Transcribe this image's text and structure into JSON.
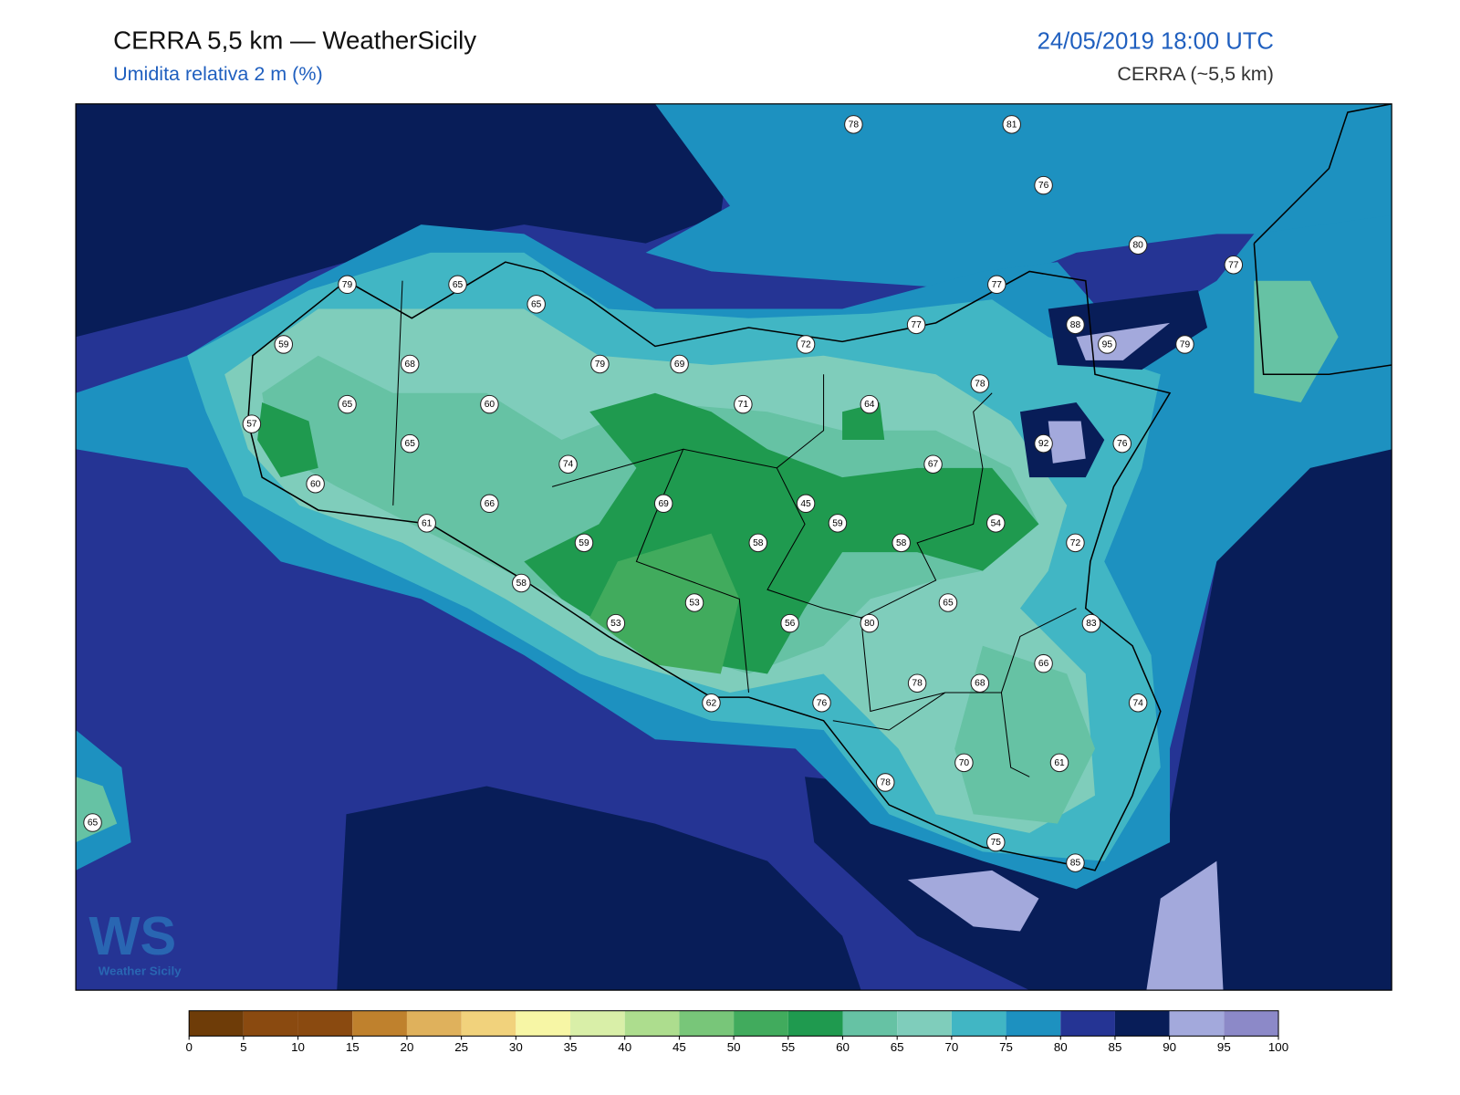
{
  "header": {
    "title": "CERRA 5,5 km — WeatherSicily",
    "subtitle": "Umidita relativa 2 m (%)",
    "datetime": "24/05/2019 18:00 UTC",
    "model": "CERRA (~5,5 km)"
  },
  "logo": {
    "mark": "WS",
    "name": "Weather Sicily"
  },
  "stations": [
    78,
    81,
    76,
    80,
    77,
    65,
    79,
    65,
    77,
    88,
    95,
    77,
    72,
    79,
    59,
    68,
    79,
    69,
    78,
    64,
    71,
    65,
    60,
    57,
    92,
    76,
    65,
    74,
    67,
    60,
    66,
    69,
    45,
    59,
    54,
    61,
    59,
    58,
    58,
    72,
    58,
    65,
    53,
    53,
    56,
    80,
    83,
    66,
    78,
    68,
    62,
    76,
    74,
    70,
    61,
    78,
    65,
    75,
    85
  ],
  "colorbar": {
    "ticks": [
      0,
      5,
      10,
      15,
      20,
      25,
      30,
      35,
      40,
      45,
      50,
      55,
      60,
      65,
      70,
      75,
      80,
      85,
      90,
      95,
      100
    ],
    "colors": [
      "#6e3c08",
      "#8a4a10",
      "#8a4a10",
      "#bf812d",
      "#dfb15c",
      "#f1d27c",
      "#f7f6a5",
      "#d9efa8",
      "#addd8e",
      "#78c679",
      "#41ab5d",
      "#1f9a4f",
      "#66c2a4",
      "#7fcdbb",
      "#41b6c4",
      "#1d91c0",
      "#253494",
      "#081d58",
      "#a3a9dc",
      "#8c89c8"
    ]
  }
}
